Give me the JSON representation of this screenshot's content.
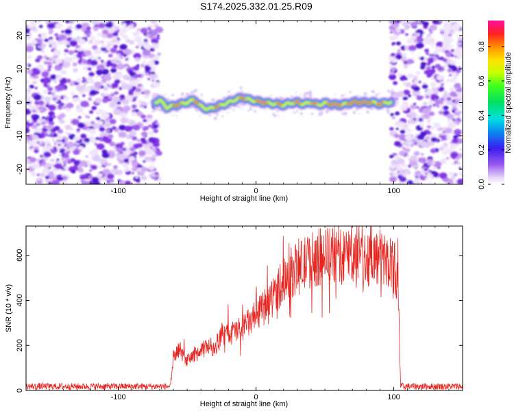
{
  "title": "S174.2025.332.01.25.R09",
  "chart_data": [
    {
      "type": "heatmap",
      "name": "spectrogram",
      "xlabel": "Height of straight line (km)",
      "ylabel": "Frequency (Hz)",
      "xlim": [
        -167,
        150
      ],
      "ylim": [
        -24.5,
        24.5
      ],
      "xticks": [
        -100,
        0,
        100
      ],
      "xtick_labels": [
        "-100",
        "0",
        "100"
      ],
      "yticks": [
        -20,
        -10,
        0,
        10,
        20
      ],
      "ytick_labels": [
        "-20",
        "-10",
        "0",
        "10",
        "20"
      ],
      "noise_regions_km": [
        [
          -167,
          -70
        ],
        [
          98,
          150
        ]
      ],
      "signal_extent_km": [
        -73,
        98
      ],
      "signal_ridge": {
        "x_km": [
          -73,
          -70,
          -65,
          -60,
          -55,
          -50,
          -45,
          -40,
          -35,
          -30,
          -25,
          -20,
          -15,
          -10,
          -5,
          0,
          5,
          10,
          15,
          20,
          25,
          30,
          35,
          40,
          45,
          50,
          55,
          60,
          65,
          70,
          75,
          80,
          85,
          90,
          95,
          98
        ],
        "freq_hz": [
          0,
          0.8,
          -1.5,
          -1.0,
          -0.5,
          0,
          0.8,
          -1.2,
          -2.0,
          -1.5,
          -0.8,
          0,
          0.8,
          1.5,
          0.8,
          0.4,
          0,
          -0.3,
          -0.5,
          -0.8,
          -0.2,
          0,
          -0.5,
          0,
          -0.8,
          -0.2,
          -0.5,
          -0.8,
          -0.5,
          0,
          0,
          0,
          0,
          -0.5,
          0,
          0
        ]
      },
      "colorbar": {
        "label": "Normalized spectral amplitude",
        "range": [
          0,
          0.95
        ],
        "ticks": [
          0.0,
          0.2,
          0.4,
          0.6,
          0.8
        ],
        "tick_labels": [
          "0.0",
          "0.2",
          "0.4",
          "0.6",
          "0.8"
        ]
      }
    },
    {
      "type": "line",
      "name": "snr",
      "xlabel": "Height of straight line (km)",
      "ylabel": "SNR (10 * v/v)",
      "xlim": [
        -167,
        150
      ],
      "ylim": [
        0,
        730
      ],
      "xticks": [
        -100,
        0,
        100
      ],
      "xtick_labels": [
        "-100",
        "0",
        "100"
      ],
      "yticks": [
        0,
        200,
        400,
        600
      ],
      "ytick_labels": [
        "0",
        "200",
        "400",
        "600"
      ],
      "line_color": "#e8241f",
      "envelope": {
        "x_km": [
          -167,
          -62,
          -60,
          -55,
          -50,
          -45,
          -40,
          -35,
          -30,
          -25,
          -20,
          -15,
          -10,
          -5,
          0,
          5,
          10,
          15,
          20,
          25,
          30,
          40,
          50,
          60,
          70,
          80,
          90,
          100,
          103,
          104,
          105,
          106,
          150
        ],
        "snr": [
          18,
          18,
          150,
          180,
          130,
          160,
          170,
          200,
          190,
          240,
          250,
          260,
          280,
          300,
          330,
          360,
          400,
          440,
          500,
          520,
          540,
          580,
          600,
          595,
          600,
          590,
          590,
          560,
          500,
          250,
          18,
          18,
          18
        ]
      },
      "noise_amplitude": 18,
      "sample_step_km": 0.25
    }
  ]
}
